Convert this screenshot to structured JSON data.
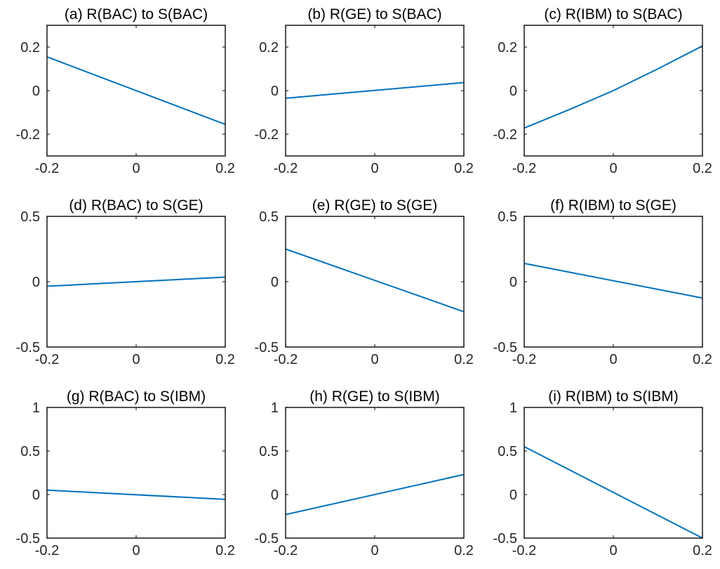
{
  "figure": {
    "background": "#ffffff",
    "line_color": "#0072BD",
    "axis_color": "#262626"
  },
  "chart_data": [
    {
      "type": "line",
      "title": "(a) R(BAC) to S(BAC)",
      "xlim": [
        -0.2,
        0.2
      ],
      "ylim": [
        -0.3,
        0.3
      ],
      "xticks": [
        -0.2,
        0,
        0.2
      ],
      "yticks": [
        -0.2,
        0,
        0.2
      ],
      "xtick_labels": [
        "-0.2",
        "0",
        "0.2"
      ],
      "ytick_labels": [
        "-0.2",
        "0",
        "0.2"
      ],
      "x": [
        -0.2,
        0.2
      ],
      "y": [
        0.155,
        -0.155
      ]
    },
    {
      "type": "line",
      "title": "(b) R(GE) to S(BAC)",
      "xlim": [
        -0.2,
        0.2
      ],
      "ylim": [
        -0.3,
        0.3
      ],
      "xticks": [
        -0.2,
        0,
        0.2
      ],
      "yticks": [
        -0.2,
        0,
        0.2
      ],
      "xtick_labels": [
        "-0.2",
        "0",
        "0.2"
      ],
      "ytick_labels": [
        "-0.2",
        "0",
        "0.2"
      ],
      "x": [
        -0.2,
        0.2
      ],
      "y": [
        -0.035,
        0.037
      ]
    },
    {
      "type": "line",
      "title": "(c) R(IBM) to S(BAC)",
      "xlim": [
        -0.2,
        0.2
      ],
      "ylim": [
        -0.3,
        0.3
      ],
      "xticks": [
        -0.2,
        0,
        0.2
      ],
      "yticks": [
        -0.2,
        0,
        0.2
      ],
      "xtick_labels": [
        "-0.2",
        "0",
        "0.2"
      ],
      "ytick_labels": [
        "-0.2",
        "0",
        "0.2"
      ],
      "x": [
        -0.2,
        -0.1,
        0,
        0.1,
        0.2
      ],
      "y": [
        -0.172,
        -0.088,
        0.0,
        0.1,
        0.205
      ]
    },
    {
      "type": "line",
      "title": "(d) R(BAC) to S(GE)",
      "xlim": [
        -0.2,
        0.2
      ],
      "ylim": [
        -0.5,
        0.5
      ],
      "xticks": [
        -0.2,
        0,
        0.2
      ],
      "yticks": [
        -0.5,
        0,
        0.5
      ],
      "xtick_labels": [
        "-0.2",
        "0",
        "0.2"
      ],
      "ytick_labels": [
        "-0.5",
        "0",
        "0.5"
      ],
      "x": [
        -0.2,
        0.2
      ],
      "y": [
        -0.035,
        0.035
      ]
    },
    {
      "type": "line",
      "title": "(e) R(GE) to S(GE)",
      "xlim": [
        -0.2,
        0.2
      ],
      "ylim": [
        -0.5,
        0.5
      ],
      "xticks": [
        -0.2,
        0,
        0.2
      ],
      "yticks": [
        -0.5,
        0,
        0.5
      ],
      "xtick_labels": [
        "-0.2",
        "0",
        "0.2"
      ],
      "ytick_labels": [
        "-0.5",
        "0",
        "0.5"
      ],
      "x": [
        -0.2,
        0.2
      ],
      "y": [
        0.25,
        -0.23
      ]
    },
    {
      "type": "line",
      "title": "(f) R(IBM) to S(GE)",
      "xlim": [
        -0.2,
        0.2
      ],
      "ylim": [
        -0.5,
        0.5
      ],
      "xticks": [
        -0.2,
        0,
        0.2
      ],
      "yticks": [
        -0.5,
        0,
        0.5
      ],
      "xtick_labels": [
        "-0.2",
        "0",
        "0.2"
      ],
      "ytick_labels": [
        "-0.5",
        "0",
        "0.5"
      ],
      "x": [
        -0.2,
        0.2
      ],
      "y": [
        0.14,
        -0.125
      ]
    },
    {
      "type": "line",
      "title": "(g) R(BAC) to S(IBM)",
      "xlim": [
        -0.2,
        0.2
      ],
      "ylim": [
        -0.5,
        1
      ],
      "xticks": [
        -0.2,
        0,
        0.2
      ],
      "yticks": [
        -0.5,
        0,
        0.5,
        1
      ],
      "xtick_labels": [
        "-0.2",
        "0",
        "0.2"
      ],
      "ytick_labels": [
        "-0.5",
        "0",
        "0.5",
        "1"
      ],
      "x": [
        -0.2,
        0.2
      ],
      "y": [
        0.05,
        -0.055
      ]
    },
    {
      "type": "line",
      "title": "(h) R(GE) to S(IBM)",
      "xlim": [
        -0.2,
        0.2
      ],
      "ylim": [
        -0.5,
        1
      ],
      "xticks": [
        -0.2,
        0,
        0.2
      ],
      "yticks": [
        -0.5,
        0,
        0.5,
        1
      ],
      "xtick_labels": [
        "-0.2",
        "0",
        "0.2"
      ],
      "ytick_labels": [
        "-0.5",
        "0",
        "0.5",
        "1"
      ],
      "x": [
        -0.2,
        0.2
      ],
      "y": [
        -0.23,
        0.23
      ]
    },
    {
      "type": "line",
      "title": "(i) R(IBM) to S(IBM)",
      "xlim": [
        -0.2,
        0.2
      ],
      "ylim": [
        -0.5,
        1
      ],
      "xticks": [
        -0.2,
        0,
        0.2
      ],
      "yticks": [
        -0.5,
        0,
        0.5,
        1
      ],
      "xtick_labels": [
        "-0.2",
        "0",
        "0.2"
      ],
      "ytick_labels": [
        "-0.5",
        "0",
        "0.5",
        "1"
      ],
      "x": [
        -0.2,
        0.2
      ],
      "y": [
        0.55,
        -0.5
      ]
    }
  ]
}
